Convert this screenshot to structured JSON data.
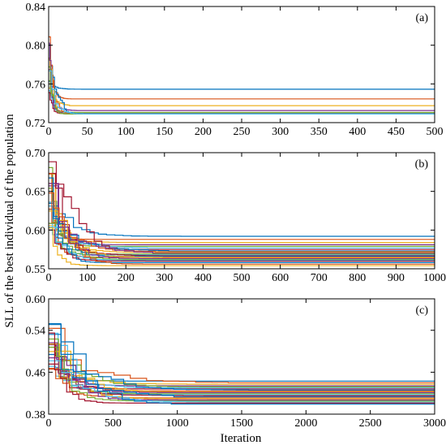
{
  "figure": {
    "ylabel": "SLL of the best individual of the population",
    "xlabel": "Iteration"
  },
  "chart_data": [
    {
      "type": "line",
      "panel_label": "(a)",
      "xlim": [
        0,
        500
      ],
      "ylim": [
        0.72,
        0.84
      ],
      "xticks": [
        0,
        50,
        100,
        150,
        200,
        250,
        300,
        350,
        400,
        450,
        500
      ],
      "yticks": [
        0.72,
        0.76,
        0.8,
        0.84
      ],
      "ytick_labels": [
        "0.72",
        "0.76",
        "0.80",
        "0.84"
      ],
      "start_range": [
        0.745,
        0.818
      ],
      "converge_by": 45,
      "final_values": [
        0.7545,
        0.7445,
        0.7375,
        0.7325,
        0.7305,
        0.7295,
        0.7293,
        0.7292,
        0.7291,
        0.729,
        0.729,
        0.7289,
        0.7289
      ],
      "grid": false
    },
    {
      "type": "line",
      "panel_label": "(b)",
      "xlim": [
        0,
        1000
      ],
      "ylim": [
        0.55,
        0.7
      ],
      "xticks": [
        0,
        100,
        200,
        300,
        400,
        500,
        600,
        700,
        800,
        900,
        1000
      ],
      "yticks": [
        0.55,
        0.6,
        0.65,
        0.7
      ],
      "ytick_labels": [
        "0.55",
        "0.60",
        "0.65",
        "0.70"
      ],
      "start_range": [
        0.6,
        0.695
      ],
      "converge_by": 330,
      "final_values": [
        0.592,
        0.588,
        0.584,
        0.581,
        0.579,
        0.577,
        0.575,
        0.573,
        0.572,
        0.571,
        0.57,
        0.569,
        0.568,
        0.567,
        0.566,
        0.565,
        0.564,
        0.563,
        0.562,
        0.561,
        0.56,
        0.558,
        0.556,
        0.554
      ],
      "grid": false
    },
    {
      "type": "line",
      "panel_label": "(c)",
      "xlim": [
        0,
        3000
      ],
      "ylim": [
        0.38,
        0.6
      ],
      "xticks": [
        0,
        500,
        1000,
        1500,
        2000,
        2500,
        3000
      ],
      "yticks": [
        0.38,
        0.46,
        0.54,
        0.6
      ],
      "ytick_labels": [
        "0.38",
        "0.46",
        "0.54",
        "0.60"
      ],
      "start_range": [
        0.465,
        0.555
      ],
      "converge_by": 1500,
      "final_values": [
        0.443,
        0.44,
        0.437,
        0.434,
        0.432,
        0.43,
        0.428,
        0.426,
        0.424,
        0.422,
        0.421,
        0.419,
        0.417,
        0.415,
        0.413,
        0.411,
        0.409,
        0.407,
        0.405,
        0.403,
        0.401,
        0.399
      ],
      "grid": false
    }
  ],
  "palette": [
    "#0072BD",
    "#D95319",
    "#EDB120",
    "#7E2F8E",
    "#77AC30",
    "#4DBEEE",
    "#A2142F"
  ]
}
